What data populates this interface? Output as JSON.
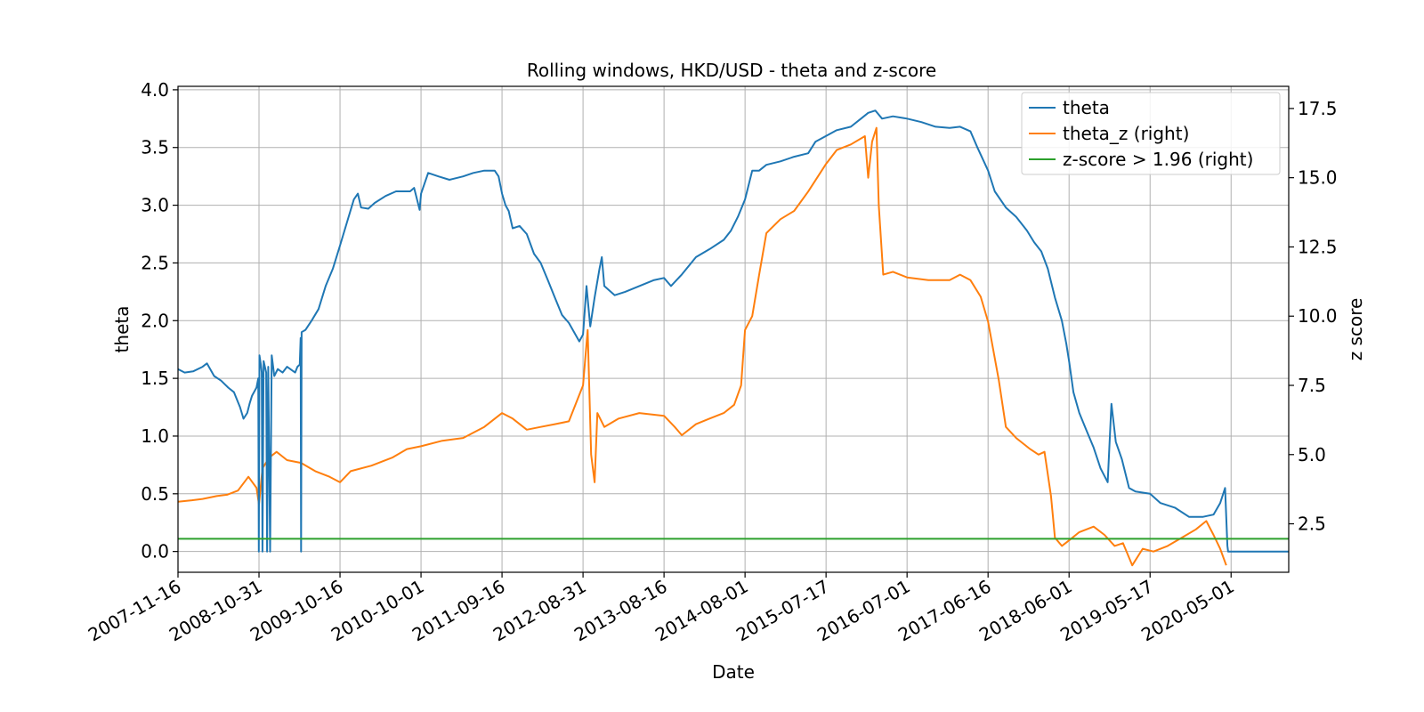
{
  "chart_data": {
    "type": "line",
    "title": "Rolling windows, HKD/USD - theta and z-score",
    "xlabel": "Date",
    "ylabel": "theta",
    "ylabel_right": "z score",
    "x_ticks": [
      "2007-11-16",
      "2008-10-31",
      "2009-10-16",
      "2010-10-01",
      "2011-09-16",
      "2012-08-31",
      "2013-08-16",
      "2014-08-01",
      "2015-07-17",
      "2016-07-01",
      "2017-06-16",
      "2018-06-01",
      "2019-05-17",
      "2020-05-01"
    ],
    "x_range": [
      "2007-11-16",
      "2021-01-05"
    ],
    "y_ticks": [
      "0.0",
      "0.5",
      "1.0",
      "1.5",
      "2.0",
      "2.5",
      "3.0",
      "3.5",
      "4.0"
    ],
    "ylim": [
      -0.18,
      4.03
    ],
    "y2_ticks": [
      "2.5",
      "5.0",
      "7.5",
      "10.0",
      "12.5",
      "15.0",
      "17.5"
    ],
    "y2lim": [
      0.75,
      18.3
    ],
    "grid": true,
    "legend_position": "top-right",
    "series": [
      {
        "name": "theta",
        "axis": "left",
        "color": "#1f77b4",
        "points": [
          [
            "2007-11-16",
            1.58
          ],
          [
            "2007-12-15",
            1.55
          ],
          [
            "2008-01-20",
            1.56
          ],
          [
            "2008-03-01",
            1.6
          ],
          [
            "2008-03-20",
            1.63
          ],
          [
            "2008-04-20",
            1.52
          ],
          [
            "2008-05-20",
            1.48
          ],
          [
            "2008-06-20",
            1.42
          ],
          [
            "2008-07-15",
            1.38
          ],
          [
            "2008-08-10",
            1.25
          ],
          [
            "2008-08-25",
            1.15
          ],
          [
            "2008-09-10",
            1.2
          ],
          [
            "2008-09-20",
            1.28
          ],
          [
            "2008-10-01",
            1.35
          ],
          [
            "2008-10-20",
            1.42
          ],
          [
            "2008-10-28",
            1.5
          ],
          [
            "2008-10-30",
            0.0
          ],
          [
            "2008-11-02",
            1.7
          ],
          [
            "2008-11-08",
            1.62
          ],
          [
            "2008-11-12",
            1.55
          ],
          [
            "2008-11-15",
            0.0
          ],
          [
            "2008-11-20",
            1.65
          ],
          [
            "2008-12-01",
            1.55
          ],
          [
            "2008-12-05",
            0.0
          ],
          [
            "2008-12-10",
            1.6
          ],
          [
            "2008-12-18",
            0.0
          ],
          [
            "2008-12-25",
            1.7
          ],
          [
            "2009-01-05",
            1.52
          ],
          [
            "2009-01-20",
            1.58
          ],
          [
            "2009-02-10",
            1.55
          ],
          [
            "2009-03-01",
            1.6
          ],
          [
            "2009-04-05",
            1.55
          ],
          [
            "2009-04-15",
            1.6
          ],
          [
            "2009-04-25",
            1.62
          ],
          [
            "2009-04-29",
            1.85
          ],
          [
            "2009-05-01",
            0.0
          ],
          [
            "2009-05-03",
            1.9
          ],
          [
            "2009-05-20",
            1.92
          ],
          [
            "2009-06-15",
            2.0
          ],
          [
            "2009-07-15",
            2.1
          ],
          [
            "2009-08-15",
            2.3
          ],
          [
            "2009-09-15",
            2.45
          ],
          [
            "2009-10-16",
            2.65
          ],
          [
            "2009-11-15",
            2.85
          ],
          [
            "2009-12-15",
            3.05
          ],
          [
            "2010-01-01",
            3.1
          ],
          [
            "2010-01-15",
            2.98
          ],
          [
            "2010-02-15",
            2.97
          ],
          [
            "2010-03-15",
            3.02
          ],
          [
            "2010-05-01",
            3.08
          ],
          [
            "2010-06-15",
            3.12
          ],
          [
            "2010-08-15",
            3.12
          ],
          [
            "2010-09-01",
            3.15
          ],
          [
            "2010-09-25",
            2.96
          ],
          [
            "2010-10-01",
            3.1
          ],
          [
            "2010-11-01",
            3.28
          ],
          [
            "2010-12-15",
            3.25
          ],
          [
            "2011-02-01",
            3.22
          ],
          [
            "2011-04-01",
            3.25
          ],
          [
            "2011-05-15",
            3.28
          ],
          [
            "2011-07-01",
            3.3
          ],
          [
            "2011-08-15",
            3.3
          ],
          [
            "2011-09-01",
            3.25
          ],
          [
            "2011-09-16",
            3.1
          ],
          [
            "2011-10-01",
            3.0
          ],
          [
            "2011-10-15",
            2.95
          ],
          [
            "2011-11-01",
            2.8
          ],
          [
            "2011-12-01",
            2.82
          ],
          [
            "2012-01-01",
            2.75
          ],
          [
            "2012-02-01",
            2.58
          ],
          [
            "2012-03-01",
            2.5
          ],
          [
            "2012-04-01",
            2.35
          ],
          [
            "2012-05-01",
            2.2
          ],
          [
            "2012-06-01",
            2.05
          ],
          [
            "2012-07-01",
            1.98
          ],
          [
            "2012-08-15",
            1.82
          ],
          [
            "2012-08-31",
            1.88
          ],
          [
            "2012-09-15",
            2.3
          ],
          [
            "2012-10-01",
            1.95
          ],
          [
            "2012-10-20",
            2.2
          ],
          [
            "2012-11-10",
            2.45
          ],
          [
            "2012-11-20",
            2.55
          ],
          [
            "2012-12-01",
            2.3
          ],
          [
            "2013-01-15",
            2.22
          ],
          [
            "2013-03-01",
            2.25
          ],
          [
            "2013-05-01",
            2.3
          ],
          [
            "2013-07-01",
            2.35
          ],
          [
            "2013-08-16",
            2.37
          ],
          [
            "2013-09-15",
            2.3
          ],
          [
            "2013-11-01",
            2.4
          ],
          [
            "2014-01-01",
            2.55
          ],
          [
            "2014-03-01",
            2.62
          ],
          [
            "2014-05-01",
            2.7
          ],
          [
            "2014-06-01",
            2.78
          ],
          [
            "2014-07-01",
            2.9
          ],
          [
            "2014-08-01",
            3.05
          ],
          [
            "2014-09-01",
            3.3
          ],
          [
            "2014-10-01",
            3.3
          ],
          [
            "2014-11-01",
            3.35
          ],
          [
            "2015-01-01",
            3.38
          ],
          [
            "2015-03-01",
            3.42
          ],
          [
            "2015-05-01",
            3.45
          ],
          [
            "2015-06-01",
            3.55
          ],
          [
            "2015-07-17",
            3.6
          ],
          [
            "2015-09-01",
            3.65
          ],
          [
            "2015-11-01",
            3.68
          ],
          [
            "2015-12-15",
            3.75
          ],
          [
            "2016-01-15",
            3.8
          ],
          [
            "2016-02-15",
            3.82
          ],
          [
            "2016-03-15",
            3.75
          ],
          [
            "2016-05-01",
            3.77
          ],
          [
            "2016-07-01",
            3.75
          ],
          [
            "2016-09-01",
            3.72
          ],
          [
            "2016-11-01",
            3.68
          ],
          [
            "2017-01-01",
            3.67
          ],
          [
            "2017-02-15",
            3.68
          ],
          [
            "2017-04-01",
            3.64
          ],
          [
            "2017-05-01",
            3.5
          ],
          [
            "2017-06-16",
            3.3
          ],
          [
            "2017-07-15",
            3.12
          ],
          [
            "2017-09-01",
            2.98
          ],
          [
            "2017-10-15",
            2.9
          ],
          [
            "2017-12-01",
            2.78
          ],
          [
            "2018-01-01",
            2.68
          ],
          [
            "2018-02-01",
            2.6
          ],
          [
            "2018-03-01",
            2.45
          ],
          [
            "2018-04-01",
            2.2
          ],
          [
            "2018-05-01",
            2.0
          ],
          [
            "2018-05-20",
            1.8
          ],
          [
            "2018-06-01",
            1.65
          ],
          [
            "2018-06-20",
            1.38
          ],
          [
            "2018-07-15",
            1.2
          ],
          [
            "2018-08-15",
            1.05
          ],
          [
            "2018-09-15",
            0.9
          ],
          [
            "2018-10-15",
            0.72
          ],
          [
            "2018-11-15",
            0.6
          ],
          [
            "2018-12-01",
            1.28
          ],
          [
            "2018-12-20",
            0.95
          ],
          [
            "2019-01-15",
            0.8
          ],
          [
            "2019-02-15",
            0.55
          ],
          [
            "2019-03-15",
            0.52
          ],
          [
            "2019-05-17",
            0.5
          ],
          [
            "2019-07-01",
            0.42
          ],
          [
            "2019-09-01",
            0.38
          ],
          [
            "2019-11-01",
            0.3
          ],
          [
            "2020-01-01",
            0.3
          ],
          [
            "2020-02-15",
            0.32
          ],
          [
            "2020-03-15",
            0.42
          ],
          [
            "2020-04-05",
            0.55
          ],
          [
            "2020-04-15",
            0.05
          ],
          [
            "2020-04-18",
            0.0
          ],
          [
            "2021-01-05",
            0.0
          ]
        ]
      },
      {
        "name": "theta_z (right)",
        "axis": "right",
        "color": "#ff7f0e",
        "points": [
          [
            "2007-11-16",
            3.3
          ],
          [
            "2008-01-15",
            3.35
          ],
          [
            "2008-03-01",
            3.4
          ],
          [
            "2008-05-01",
            3.5
          ],
          [
            "2008-06-15",
            3.55
          ],
          [
            "2008-08-01",
            3.7
          ],
          [
            "2008-09-15",
            4.2
          ],
          [
            "2008-10-20",
            3.8
          ],
          [
            "2008-10-31",
            3.2
          ],
          [
            "2008-11-15",
            4.5
          ],
          [
            "2008-12-15",
            4.9
          ],
          [
            "2009-01-15",
            5.1
          ],
          [
            "2009-03-01",
            4.8
          ],
          [
            "2009-05-01",
            4.7
          ],
          [
            "2009-07-01",
            4.4
          ],
          [
            "2009-09-01",
            4.2
          ],
          [
            "2009-10-16",
            4.0
          ],
          [
            "2009-12-01",
            4.4
          ],
          [
            "2010-03-01",
            4.6
          ],
          [
            "2010-06-01",
            4.9
          ],
          [
            "2010-08-01",
            5.2
          ],
          [
            "2010-10-01",
            5.3
          ],
          [
            "2011-01-01",
            5.5
          ],
          [
            "2011-04-01",
            5.6
          ],
          [
            "2011-07-01",
            6.0
          ],
          [
            "2011-09-16",
            6.5
          ],
          [
            "2011-11-01",
            6.3
          ],
          [
            "2012-01-01",
            5.9
          ],
          [
            "2012-03-01",
            6.0
          ],
          [
            "2012-05-01",
            6.1
          ],
          [
            "2012-07-01",
            6.2
          ],
          [
            "2012-08-31",
            7.5
          ],
          [
            "2012-09-20",
            9.5
          ],
          [
            "2012-10-05",
            5.0
          ],
          [
            "2012-10-20",
            4.0
          ],
          [
            "2012-11-01",
            6.5
          ],
          [
            "2012-12-01",
            6.0
          ],
          [
            "2013-02-01",
            6.3
          ],
          [
            "2013-05-01",
            6.5
          ],
          [
            "2013-08-16",
            6.4
          ],
          [
            "2013-10-01",
            6.0
          ],
          [
            "2013-11-01",
            5.7
          ],
          [
            "2014-01-01",
            6.1
          ],
          [
            "2014-03-01",
            6.3
          ],
          [
            "2014-05-01",
            6.5
          ],
          [
            "2014-06-15",
            6.8
          ],
          [
            "2014-07-15",
            7.5
          ],
          [
            "2014-08-01",
            9.5
          ],
          [
            "2014-09-01",
            10.0
          ],
          [
            "2014-10-01",
            11.5
          ],
          [
            "2014-11-01",
            13.0
          ],
          [
            "2015-01-01",
            13.5
          ],
          [
            "2015-03-01",
            13.8
          ],
          [
            "2015-05-01",
            14.5
          ],
          [
            "2015-07-17",
            15.5
          ],
          [
            "2015-09-01",
            16.0
          ],
          [
            "2015-11-01",
            16.2
          ],
          [
            "2016-01-01",
            16.5
          ],
          [
            "2016-01-15",
            15.0
          ],
          [
            "2016-02-01",
            16.3
          ],
          [
            "2016-02-20",
            16.8
          ],
          [
            "2016-03-01",
            14.0
          ],
          [
            "2016-03-20",
            11.5
          ],
          [
            "2016-05-01",
            11.6
          ],
          [
            "2016-07-01",
            11.4
          ],
          [
            "2016-10-01",
            11.3
          ],
          [
            "2017-01-01",
            11.3
          ],
          [
            "2017-02-15",
            11.5
          ],
          [
            "2017-04-01",
            11.3
          ],
          [
            "2017-05-15",
            10.7
          ],
          [
            "2017-06-16",
            9.8
          ],
          [
            "2017-08-01",
            7.7
          ],
          [
            "2017-09-01",
            6.0
          ],
          [
            "2017-10-15",
            5.6
          ],
          [
            "2017-12-15",
            5.2
          ],
          [
            "2018-01-20",
            5.0
          ],
          [
            "2018-02-15",
            5.1
          ],
          [
            "2018-03-15",
            3.5
          ],
          [
            "2018-04-01",
            2.0
          ],
          [
            "2018-05-01",
            1.7
          ],
          [
            "2018-06-01",
            1.9
          ],
          [
            "2018-07-15",
            2.2
          ],
          [
            "2018-09-15",
            2.4
          ],
          [
            "2018-11-01",
            2.1
          ],
          [
            "2018-12-15",
            1.7
          ],
          [
            "2019-01-20",
            1.8
          ],
          [
            "2019-03-01",
            1.0
          ],
          [
            "2019-04-15",
            1.6
          ],
          [
            "2019-06-01",
            1.5
          ],
          [
            "2019-08-01",
            1.7
          ],
          [
            "2019-10-01",
            2.0
          ],
          [
            "2019-12-01",
            2.3
          ],
          [
            "2020-01-15",
            2.6
          ],
          [
            "2020-02-15",
            2.1
          ],
          [
            "2020-03-15",
            1.6
          ],
          [
            "2020-04-10",
            1.0
          ]
        ]
      },
      {
        "name": "z-score > 1.96 (right)",
        "axis": "right",
        "color": "#2ca02c",
        "points": [
          [
            "2007-11-16",
            1.96
          ],
          [
            "2021-01-05",
            1.96
          ]
        ]
      }
    ]
  }
}
